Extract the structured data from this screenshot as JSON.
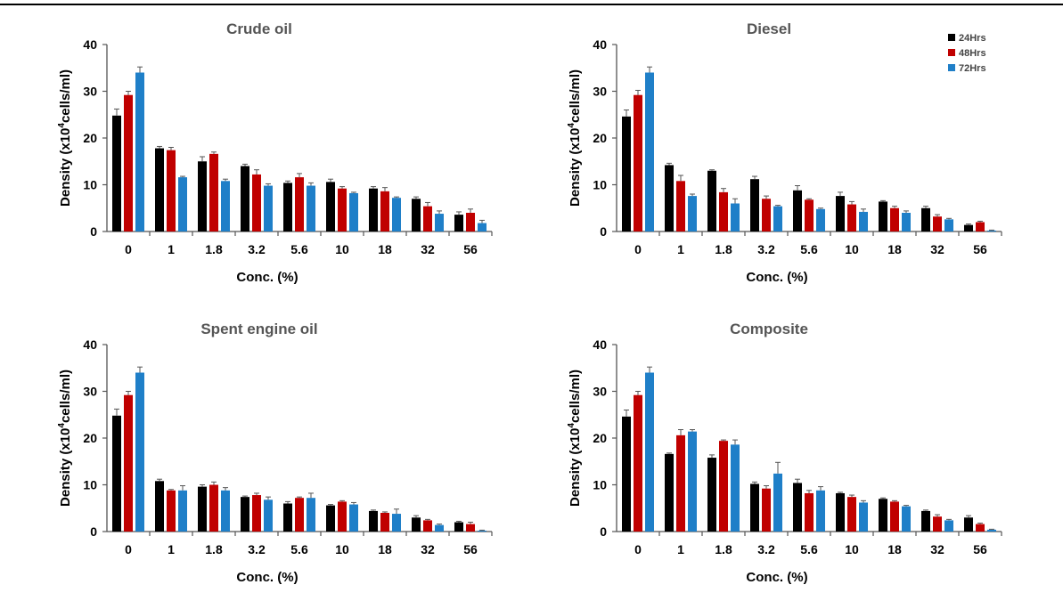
{
  "colors": {
    "24Hrs": "#000000",
    "48Hrs": "#c00000",
    "72Hrs": "#1f7fc8"
  },
  "legend": [
    "24Hrs",
    "48Hrs",
    "72Hrs"
  ],
  "chart_data": [
    {
      "type": "bar",
      "title": "Crude oil",
      "xlabel": "Conc. (%)",
      "ylabel": "Density (x10",
      "ylabel_sup": "4",
      "ylabel_tail": "cells/ml)",
      "ylim": [
        0,
        40
      ],
      "yticks": [
        "0",
        "10",
        "20",
        "30",
        "40"
      ],
      "categories": [
        "0",
        "1",
        "1.8",
        "3.2",
        "5.6",
        "10",
        "18",
        "32",
        "56"
      ],
      "series": [
        {
          "name": "24Hrs",
          "values": [
            24.8,
            17.8,
            15.0,
            14.0,
            10.4,
            10.6,
            9.2,
            7.0,
            3.6
          ],
          "errors": [
            1.4,
            0.4,
            1.0,
            0.4,
            0.4,
            0.6,
            0.4,
            0.4,
            0.6
          ]
        },
        {
          "name": "48Hrs",
          "values": [
            29.2,
            17.4,
            16.6,
            12.2,
            11.6,
            9.2,
            8.6,
            5.4,
            4.0
          ],
          "errors": [
            0.8,
            0.6,
            0.4,
            1.0,
            0.8,
            0.4,
            0.8,
            0.8,
            0.8
          ]
        },
        {
          "name": "72Hrs",
          "values": [
            34.0,
            11.6,
            10.8,
            9.8,
            9.8,
            8.2,
            7.2,
            3.8,
            1.8
          ],
          "errors": [
            1.2,
            0.2,
            0.4,
            0.4,
            0.6,
            0.2,
            0.2,
            0.6,
            0.6
          ]
        }
      ]
    },
    {
      "type": "bar",
      "title": "Diesel",
      "xlabel": "Conc. (%)",
      "ylabel": "Density (x10",
      "ylabel_sup": "4",
      "ylabel_tail": "cells/ml)",
      "ylim": [
        0,
        40
      ],
      "yticks": [
        "0",
        "10",
        "20",
        "30",
        "40"
      ],
      "categories": [
        "0",
        "1",
        "1.8",
        "3.2",
        "5.6",
        "10",
        "18",
        "32",
        "56"
      ],
      "legend_position": "top-right",
      "series": [
        {
          "name": "24Hrs",
          "values": [
            24.6,
            14.2,
            13.0,
            11.2,
            8.8,
            7.6,
            6.4,
            5.0,
            1.4
          ],
          "errors": [
            1.4,
            0.4,
            0.2,
            0.6,
            1.0,
            0.8,
            0.2,
            0.4,
            0.2
          ]
        },
        {
          "name": "48Hrs",
          "values": [
            29.2,
            10.8,
            8.4,
            7.0,
            6.8,
            5.8,
            5.0,
            3.2,
            2.0
          ],
          "errors": [
            1.0,
            1.2,
            0.8,
            0.6,
            0.2,
            0.6,
            0.4,
            0.4,
            0.2
          ]
        },
        {
          "name": "72Hrs",
          "values": [
            34.0,
            7.6,
            6.0,
            5.4,
            4.8,
            4.2,
            4.0,
            2.6,
            0.2
          ],
          "errors": [
            1.2,
            0.4,
            1.0,
            0.2,
            0.2,
            0.6,
            0.4,
            0.2,
            0.1
          ]
        }
      ]
    },
    {
      "type": "bar",
      "title": "Spent engine oil",
      "xlabel": "Conc. (%)",
      "ylabel": "Density (x10",
      "ylabel_sup": "4",
      "ylabel_tail": "cells/ml)",
      "ylim": [
        0,
        40
      ],
      "yticks": [
        "0",
        "10",
        "20",
        "30",
        "40"
      ],
      "categories": [
        "0",
        "1",
        "1.8",
        "3.2",
        "5.6",
        "10",
        "18",
        "32",
        "56"
      ],
      "series": [
        {
          "name": "24Hrs",
          "values": [
            24.8,
            10.8,
            9.6,
            7.4,
            6.0,
            5.6,
            4.4,
            3.0,
            2.0
          ],
          "errors": [
            1.4,
            0.4,
            0.4,
            0.2,
            0.4,
            0.2,
            0.2,
            0.4,
            0.2
          ]
        },
        {
          "name": "48Hrs",
          "values": [
            29.2,
            8.8,
            10.0,
            7.8,
            7.2,
            6.4,
            4.0,
            2.4,
            1.6
          ],
          "errors": [
            0.8,
            0.2,
            0.6,
            0.4,
            0.2,
            0.2,
            0.2,
            0.2,
            0.4
          ]
        },
        {
          "name": "72Hrs",
          "values": [
            34.0,
            8.8,
            8.8,
            6.8,
            7.2,
            5.8,
            3.8,
            1.4,
            0.2
          ],
          "errors": [
            1.2,
            1.0,
            0.6,
            0.6,
            1.0,
            0.4,
            1.0,
            0.2,
            0.1
          ]
        }
      ]
    },
    {
      "type": "bar",
      "title": "Composite",
      "xlabel": "Conc. (%)",
      "ylabel": "Density (x10",
      "ylabel_sup": "4",
      "ylabel_tail": "cells/ml)",
      "ylim": [
        0,
        40
      ],
      "yticks": [
        "0",
        "10",
        "20",
        "30",
        "40"
      ],
      "categories": [
        "0",
        "1",
        "1.8",
        "3.2",
        "5.6",
        "10",
        "18",
        "32",
        "56"
      ],
      "series": [
        {
          "name": "24Hrs",
          "values": [
            24.6,
            16.6,
            15.8,
            10.2,
            10.4,
            8.2,
            7.0,
            4.4,
            3.0
          ],
          "errors": [
            1.4,
            0.2,
            0.6,
            0.4,
            0.8,
            0.2,
            0.2,
            0.2,
            0.4
          ]
        },
        {
          "name": "48Hrs",
          "values": [
            29.2,
            20.6,
            19.4,
            9.2,
            8.2,
            7.4,
            6.4,
            3.2,
            1.6
          ],
          "errors": [
            0.8,
            1.2,
            0.2,
            0.6,
            0.6,
            0.4,
            0.2,
            0.4,
            0.2
          ]
        },
        {
          "name": "72Hrs",
          "values": [
            34.0,
            21.4,
            18.6,
            12.4,
            8.8,
            6.2,
            5.4,
            2.4,
            0.4
          ],
          "errors": [
            1.2,
            0.4,
            1.0,
            2.4,
            0.8,
            0.4,
            0.2,
            0.2,
            0.1
          ]
        }
      ]
    }
  ]
}
